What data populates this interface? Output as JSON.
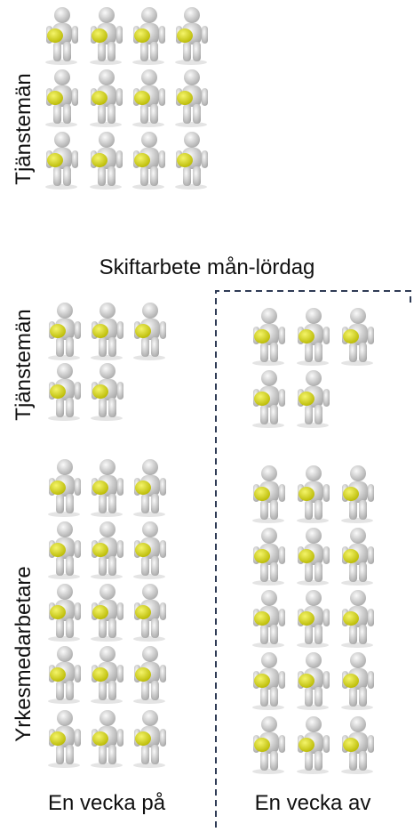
{
  "top_group": {
    "label": "Tjänstemän"
  },
  "title": "Skiftarbete mån-lördag",
  "left_column": {
    "group_1_label": "Tjänstemän",
    "group_2_label": "Yrkesmedarbetare",
    "caption": "En vecka på"
  },
  "right_column": {
    "caption": "En vecka av"
  }
}
